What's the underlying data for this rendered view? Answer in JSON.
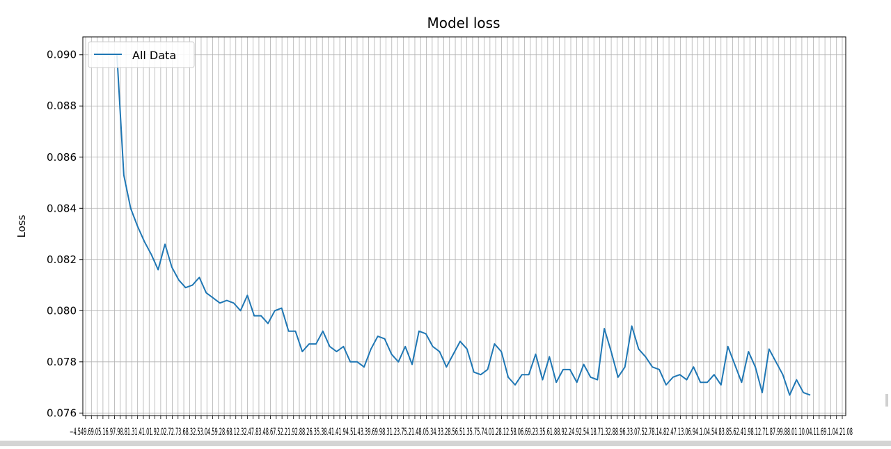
{
  "chart_data": {
    "type": "line",
    "title": "Model loss",
    "xlabel": "",
    "ylabel": "Loss",
    "ylim": [
      0.0759,
      0.0907
    ],
    "y_ticks": [
      0.076,
      0.078,
      0.08,
      0.082,
      0.084,
      0.086,
      0.088,
      0.09
    ],
    "y_tick_labels": [
      "0.076",
      "0.078",
      "0.080",
      "0.082",
      "0.084",
      "0.086",
      "0.088",
      "0.090"
    ],
    "grid": true,
    "legend_position": "upper left",
    "series": [
      {
        "name": "All Data",
        "color": "#1f77b4",
        "values": [
          0.09,
          0.0853,
          0.084,
          0.0833,
          0.0827,
          0.0822,
          0.0816,
          0.0826,
          0.0817,
          0.0812,
          0.0809,
          0.081,
          0.0813,
          0.0807,
          0.0805,
          0.0803,
          0.0804,
          0.0803,
          0.08,
          0.0806,
          0.0798,
          0.0798,
          0.0795,
          0.08,
          0.0801,
          0.0792,
          0.0792,
          0.0784,
          0.0787,
          0.0787,
          0.0792,
          0.0786,
          0.0784,
          0.0786,
          0.078,
          0.078,
          0.0778,
          0.0785,
          0.079,
          0.0789,
          0.0783,
          0.078,
          0.0786,
          0.0779,
          0.0792,
          0.0791,
          0.0786,
          0.0784,
          0.0778,
          0.0783,
          0.0788,
          0.0785,
          0.0776,
          0.0775,
          0.0777,
          0.0787,
          0.0784,
          0.0774,
          0.0771,
          0.0775,
          0.0775,
          0.0783,
          0.0773,
          0.0782,
          0.0772,
          0.0777,
          0.0777,
          0.0772,
          0.0779,
          0.0774,
          0.0773,
          0.0793,
          0.0784,
          0.0774,
          0.0778,
          0.0794,
          0.0785,
          0.0782,
          0.0778,
          0.0777,
          0.0771,
          0.0774,
          0.0775,
          0.0773,
          0.0778,
          0.0772,
          0.0772,
          0.0775,
          0.0771,
          0.0786,
          0.0779,
          0.0772,
          0.0784,
          0.0778,
          0.0768,
          0.0785,
          0.078,
          0.0775,
          0.0767,
          0.0773,
          0.0768,
          0.0767
        ]
      }
    ],
    "x_tick_count": 132,
    "x_tick_text": "−4.549.69.05.16.97.98.81.31.41.01.92.02.72.73.68.32.53.04.59.28.68.12.32.47.83.48.67.52.21.92.88.26.35.38.41.41.94.51.43.39.69.98.31.23.75.21.48.05.34.33.28.56.51.35.75.74.01.28.12.58.06.69.23.35.61.88.92.24.92.54.18.71.32.88.96.33.07.52.78.14.82.47.13.06.94.1.04.54.83.85.62.41.98.12.71.87.99.88.01.10.04.11.69.1.04.21.08"
  }
}
